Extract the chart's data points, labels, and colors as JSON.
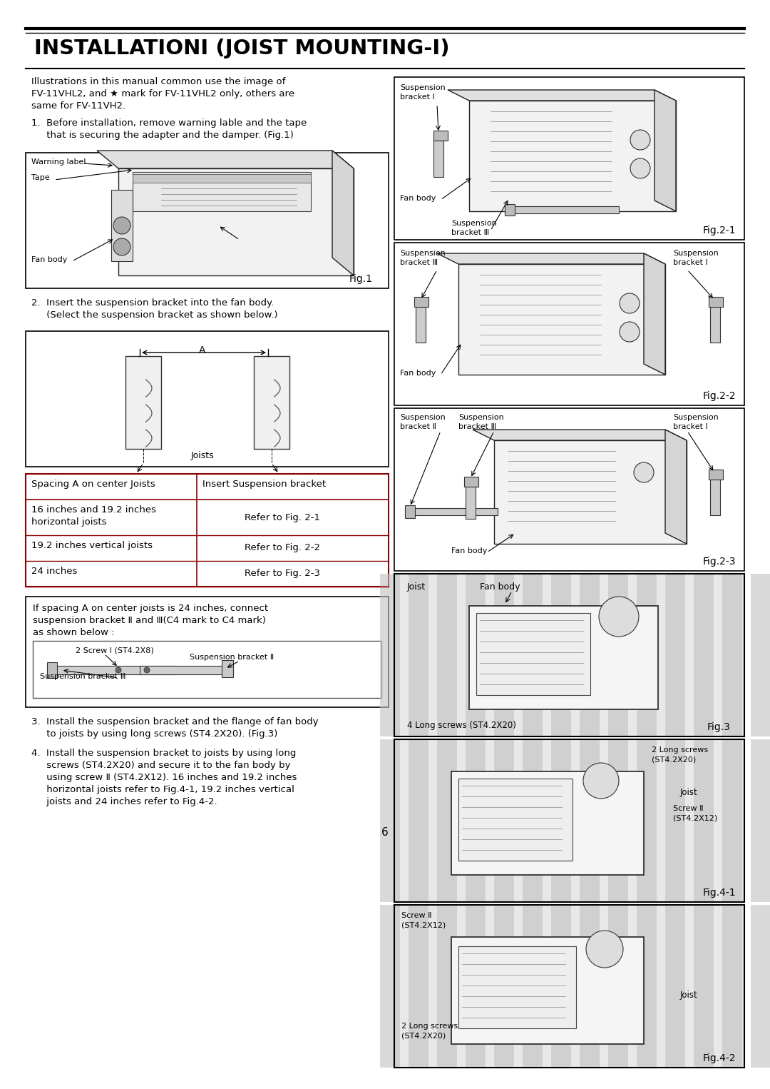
{
  "title": "INSTALLATIONⅠ (JOIST MOUNTING-Ⅰ)",
  "page_number": "6",
  "bg_color": "#ffffff",
  "text_color": "#000000",
  "intro_text": "Illustrations in this manual common use the image of\nFV-11VHL2, and ★ mark for FV-11VHL2 only, others are\nsame for FV-11VH2.",
  "step1_text": "1.  Before installation, remove warning lable and the tape\n     that is securing the adapter and the damper. (Fig.1)",
  "step2_text": "2.  Insert the suspension bracket into the fan body.\n     (Select the suspension bracket as shown below.)",
  "step3_text": "3.  Install the suspension bracket and the flange of fan body\n     to joists by using long screws (ST4.2X20). (Fig.3)",
  "step4_text": "4.  Install the suspension bracket to joists by using long\n     screws (ST4.2X20) and secure it to the fan body by\n     using screw Ⅱ (ST4.2X12). 16 inches and 19.2 inches\n     horizontal joists refer to Fig.4-1, 19.2 inches vertical\n     joists and 24 inches refer to Fig.4-2.",
  "table_header": [
    "Spacing A on center Joists",
    "Insert Suspension bracket"
  ],
  "table_rows": [
    [
      "16 inches and 19.2 inches\nhorizontal joists",
      "Refer to Fig. 2-1"
    ],
    [
      "19.2 inches vertical joists",
      "Refer to Fig. 2-2"
    ],
    [
      "24 inches",
      "Refer to Fig. 2-3"
    ]
  ],
  "note_text": "If spacing A on center joists is 24 inches, connect\nsuspension bracket Ⅱ and Ⅲ(C4 mark to C4 mark)\nas shown below :",
  "fig1_labels": [
    "Warning label",
    "Tape",
    "Fan body",
    "Fig.1"
  ],
  "fig21_labels": [
    "Suspension\nbracket I",
    "Fan body",
    "Suspension\nbracket Ⅲ",
    "Fig.2-1"
  ],
  "fig22_labels": [
    "Suspension\nbracket Ⅲ",
    "Suspension\nbracket I",
    "Fan body",
    "Fig.2-2"
  ],
  "fig23_labels": [
    "Suspension\nbracket Ⅱ",
    "Suspension\nbracket Ⅲ",
    "Suspension\nbracket I",
    "Fan body",
    "Fig.2-3"
  ],
  "fig3_labels": [
    "Joist",
    "Fan body",
    "4 Long screws (ST4.2X20)",
    "Fig.3"
  ],
  "fig41_labels": [
    "2 Long screws\n(ST4.2X20)",
    "Joist",
    "Screw Ⅱ\n(ST4.2X12)",
    "Fig.4-1"
  ],
  "fig42_labels": [
    "Screw Ⅱ\n(ST4.2X12)",
    "Joist",
    "2 Long screws\n(ST4.2X20)",
    "Fig.4-2"
  ]
}
